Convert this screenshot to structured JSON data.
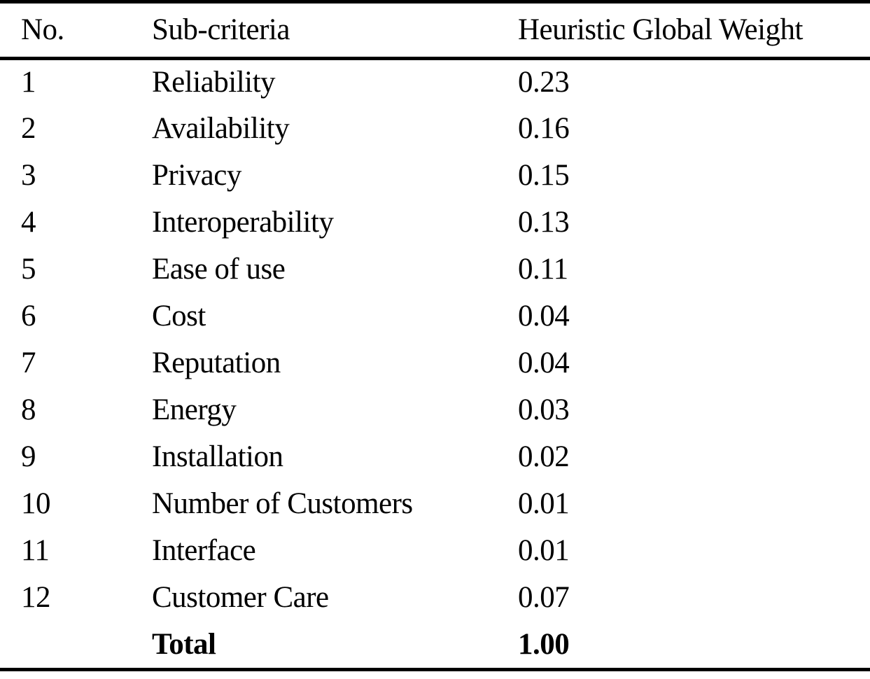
{
  "colors": {
    "text": "#000000",
    "background": "#ffffff",
    "rule": "#000000"
  },
  "table": {
    "columns": [
      {
        "label": "No."
      },
      {
        "label": "Sub-criteria"
      },
      {
        "label": "Heuristic Global Weight"
      }
    ],
    "rows": [
      {
        "no": "1",
        "sub_criteria": "Reliability",
        "weight": "0.23"
      },
      {
        "no": "2",
        "sub_criteria": "Availability",
        "weight": "0.16"
      },
      {
        "no": "3",
        "sub_criteria": "Privacy",
        "weight": "0.15"
      },
      {
        "no": "4",
        "sub_criteria": "Interoperability",
        "weight": "0.13"
      },
      {
        "no": "5",
        "sub_criteria": "Ease of use",
        "weight": "0.11"
      },
      {
        "no": "6",
        "sub_criteria": "Cost",
        "weight": "0.04"
      },
      {
        "no": "7",
        "sub_criteria": "Reputation",
        "weight": "0.04"
      },
      {
        "no": "8",
        "sub_criteria": "Energy",
        "weight": "0.03"
      },
      {
        "no": "9",
        "sub_criteria": "Installation",
        "weight": "0.02"
      },
      {
        "no": "10",
        "sub_criteria": "Number of Customers",
        "weight": "0.01"
      },
      {
        "no": "11",
        "sub_criteria": "Interface",
        "weight": "0.01"
      },
      {
        "no": "12",
        "sub_criteria": "Customer Care",
        "weight": "0.07"
      }
    ],
    "total_row": {
      "no": "",
      "sub_criteria": "Total",
      "weight": "1.00"
    }
  }
}
